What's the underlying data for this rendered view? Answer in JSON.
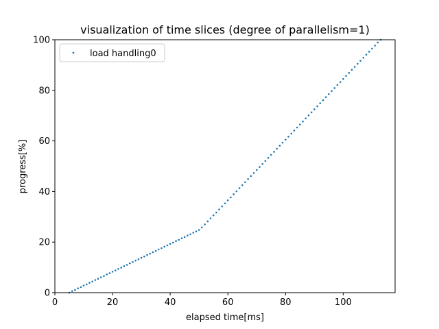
{
  "chart_data": {
    "type": "scatter",
    "title": "visualization of time slices (degree of parallelism=1)",
    "xlabel": "elapsed time[ms]",
    "ylabel": "progress[%]",
    "xlim": [
      0,
      118
    ],
    "ylim": [
      0,
      100
    ],
    "xticks": [
      0,
      20,
      40,
      60,
      80,
      100
    ],
    "yticks": [
      0,
      20,
      40,
      60,
      80,
      100
    ],
    "grid": false,
    "legend_position": "top-left",
    "series": [
      {
        "name": "load handling0",
        "color": "#1f77b4",
        "points": [
          [
            5.0,
            0.0
          ],
          [
            6.0,
            0.6
          ],
          [
            7.0,
            1.1
          ],
          [
            8.0,
            1.7
          ],
          [
            9.0,
            2.2
          ],
          [
            10.0,
            2.8
          ],
          [
            11.0,
            3.3
          ],
          [
            12.0,
            3.9
          ],
          [
            13.0,
            4.4
          ],
          [
            14.0,
            5.0
          ],
          [
            15.0,
            5.5
          ],
          [
            16.0,
            6.1
          ],
          [
            17.0,
            6.6
          ],
          [
            18.0,
            7.2
          ],
          [
            19.0,
            7.7
          ],
          [
            20.0,
            8.3
          ],
          [
            21.0,
            8.8
          ],
          [
            22.0,
            9.4
          ],
          [
            23.0,
            9.9
          ],
          [
            24.0,
            10.5
          ],
          [
            25.0,
            11.0
          ],
          [
            26.0,
            11.6
          ],
          [
            27.0,
            12.1
          ],
          [
            28.0,
            12.7
          ],
          [
            29.0,
            13.2
          ],
          [
            30.0,
            13.8
          ],
          [
            31.0,
            14.3
          ],
          [
            32.0,
            14.9
          ],
          [
            33.0,
            15.4
          ],
          [
            34.0,
            16.0
          ],
          [
            35.0,
            16.5
          ],
          [
            36.0,
            17.1
          ],
          [
            37.0,
            17.6
          ],
          [
            38.0,
            18.2
          ],
          [
            39.0,
            18.7
          ],
          [
            40.0,
            19.3
          ],
          [
            41.0,
            19.8
          ],
          [
            42.0,
            20.4
          ],
          [
            43.0,
            20.9
          ],
          [
            44.0,
            21.5
          ],
          [
            45.0,
            22.0
          ],
          [
            46.0,
            22.6
          ],
          [
            47.0,
            23.1
          ],
          [
            48.0,
            23.7
          ],
          [
            49.0,
            24.2
          ],
          [
            50.0,
            24.8
          ],
          [
            51.0,
            25.8
          ],
          [
            52.0,
            27.0
          ],
          [
            53.0,
            28.2
          ],
          [
            54.0,
            29.4
          ],
          [
            55.0,
            30.6
          ],
          [
            56.0,
            31.7
          ],
          [
            57.0,
            32.9
          ],
          [
            58.0,
            34.1
          ],
          [
            59.0,
            35.3
          ],
          [
            60.0,
            36.5
          ],
          [
            61.0,
            37.7
          ],
          [
            62.0,
            38.9
          ],
          [
            63.0,
            40.1
          ],
          [
            64.0,
            41.3
          ],
          [
            65.0,
            42.5
          ],
          [
            66.0,
            43.7
          ],
          [
            67.0,
            44.9
          ],
          [
            68.0,
            46.1
          ],
          [
            69.0,
            47.3
          ],
          [
            70.0,
            48.5
          ],
          [
            71.0,
            49.7
          ],
          [
            72.0,
            50.9
          ],
          [
            73.0,
            52.1
          ],
          [
            74.0,
            53.3
          ],
          [
            75.0,
            54.5
          ],
          [
            76.0,
            55.7
          ],
          [
            77.0,
            56.9
          ],
          [
            78.0,
            58.1
          ],
          [
            79.0,
            59.3
          ],
          [
            80.0,
            60.5
          ],
          [
            81.0,
            61.7
          ],
          [
            82.0,
            62.9
          ],
          [
            83.0,
            64.1
          ],
          [
            84.0,
            65.3
          ],
          [
            85.0,
            66.5
          ],
          [
            86.0,
            67.7
          ],
          [
            87.0,
            68.9
          ],
          [
            88.0,
            70.1
          ],
          [
            89.0,
            71.3
          ],
          [
            90.0,
            72.5
          ],
          [
            91.0,
            73.7
          ],
          [
            92.0,
            74.9
          ],
          [
            93.0,
            76.1
          ],
          [
            94.0,
            77.3
          ],
          [
            95.0,
            78.5
          ],
          [
            96.0,
            79.7
          ],
          [
            97.0,
            80.9
          ],
          [
            98.0,
            82.1
          ],
          [
            99.0,
            83.3
          ],
          [
            100.0,
            84.5
          ],
          [
            101.0,
            85.7
          ],
          [
            102.0,
            86.9
          ],
          [
            103.0,
            88.1
          ],
          [
            104.0,
            89.3
          ],
          [
            105.0,
            90.5
          ],
          [
            106.0,
            91.7
          ],
          [
            107.0,
            92.9
          ],
          [
            108.0,
            94.1
          ],
          [
            109.0,
            95.3
          ],
          [
            110.0,
            96.5
          ],
          [
            111.0,
            97.7
          ],
          [
            112.0,
            98.9
          ],
          [
            113.0,
            100.0
          ]
        ]
      }
    ]
  }
}
